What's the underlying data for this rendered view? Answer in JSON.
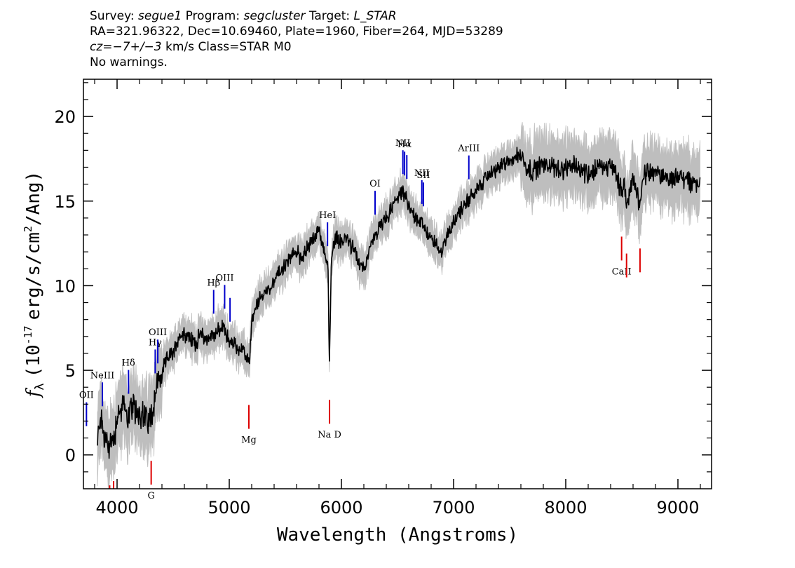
{
  "header": {
    "line1": {
      "survey_label": "Survey:",
      "survey": "segue1",
      "program_label": "Program:",
      "program": "segcluster",
      "target_label": "Target:",
      "target": "L_STAR"
    },
    "line2": "RA=321.96322, Dec=10.69460, Plate=1960, Fiber=264, MJD=53289",
    "line3": {
      "cz_label": "cz",
      "cz_value": "=−7+/−3",
      "cz_unit": "km/s",
      "class_text": "Class=STAR M0"
    },
    "line4": "No warnings."
  },
  "chart_data": {
    "type": "line",
    "title": "",
    "xlabel": "Wavelength (Angstroms)",
    "ylabel": {
      "symbol": "f",
      "subscript": "λ",
      "open": "(10",
      "exponent": "-17",
      "middle": "erg/s/cm",
      "exponent2": "2",
      "close": "/Ang)"
    },
    "xlim": [
      3700,
      9300
    ],
    "ylim": [
      -2,
      22.2
    ],
    "xticks": [
      4000,
      5000,
      6000,
      7000,
      8000,
      9000
    ],
    "yticks": [
      0,
      5,
      10,
      15,
      20
    ],
    "colors": {
      "flux": "#000000",
      "error_band": "#bebebe",
      "emission": "#0000cc",
      "absorption": "#dd0000"
    },
    "series": [
      {
        "role": "flux",
        "x": [
          3825,
          3850,
          3880,
          3900,
          3920,
          3950,
          3980,
          4000,
          4050,
          4100,
          4150,
          4200,
          4250,
          4300,
          4350,
          4400,
          4450,
          4500,
          4550,
          4600,
          4650,
          4700,
          4750,
          4800,
          4850,
          4900,
          4950,
          5000,
          5050,
          5100,
          5150,
          5180,
          5200,
          5250,
          5300,
          5350,
          5400,
          5450,
          5500,
          5550,
          5600,
          5650,
          5700,
          5750,
          5800,
          5850,
          5880,
          5893,
          5910,
          5950,
          6000,
          6050,
          6100,
          6150,
          6200,
          6250,
          6300,
          6350,
          6400,
          6450,
          6500,
          6550,
          6580,
          6600,
          6650,
          6700,
          6750,
          6800,
          6850,
          6880,
          6900,
          6950,
          7000,
          7050,
          7100,
          7150,
          7200,
          7250,
          7300,
          7400,
          7500,
          7600,
          7650,
          7700,
          7800,
          7900,
          8000,
          8100,
          8200,
          8300,
          8400,
          8450,
          8498,
          8520,
          8542,
          8600,
          8662,
          8700,
          8800,
          8900,
          9000,
          9100,
          9200
        ],
        "values": [
          0.5,
          2.5,
          1.2,
          0.8,
          0.5,
          0.8,
          1.2,
          2.4,
          2.8,
          2.4,
          2.7,
          2.5,
          2.2,
          2.1,
          4.0,
          4.8,
          5.8,
          6.0,
          7.0,
          7.2,
          6.9,
          6.6,
          7.2,
          6.8,
          7.1,
          7.3,
          7.6,
          6.7,
          6.5,
          6.2,
          5.8,
          5.5,
          7.8,
          8.9,
          9.5,
          9.8,
          10.3,
          10.8,
          11.2,
          11.7,
          12.0,
          11.6,
          12.3,
          12.8,
          13.2,
          12.0,
          11.0,
          5.5,
          11.5,
          13.0,
          12.5,
          12.8,
          12.2,
          11.5,
          11.0,
          12.0,
          13.0,
          13.5,
          14.0,
          14.5,
          15.3,
          15.4,
          15.2,
          14.6,
          14.2,
          13.8,
          13.3,
          12.8,
          12.3,
          12.0,
          12.3,
          13.0,
          13.8,
          14.3,
          14.8,
          15.2,
          15.6,
          16.0,
          16.5,
          17.0,
          17.4,
          17.8,
          17.0,
          16.8,
          17.2,
          17.0,
          16.8,
          17.1,
          16.6,
          17.0,
          17.1,
          16.7,
          15.5,
          16.2,
          14.5,
          16.5,
          14.8,
          16.6,
          16.7,
          16.3,
          16.5,
          16.2,
          16.0
        ]
      }
    ],
    "spectral_lines": [
      {
        "label": "OII",
        "lambda": 3727,
        "kind": "emission"
      },
      {
        "label": "NeIII",
        "lambda": 3869,
        "kind": "emission"
      },
      {
        "label": "Hδ",
        "lambda": 4102,
        "kind": "emission"
      },
      {
        "label": "Hγ",
        "lambda": 4340,
        "kind": "emission"
      },
      {
        "label": "OIII",
        "lambda": 4363,
        "kind": "emission"
      },
      {
        "label": "Hβ",
        "lambda": 4861,
        "kind": "emission"
      },
      {
        "label": "OIII",
        "lambda": 4959,
        "kind": "emission"
      },
      {
        "label": "",
        "lambda": 5007,
        "kind": "emission"
      },
      {
        "label": "HeI",
        "lambda": 5876,
        "kind": "emission"
      },
      {
        "label": "OI",
        "lambda": 6300,
        "kind": "emission"
      },
      {
        "label": "NII",
        "lambda": 6548,
        "kind": "emission"
      },
      {
        "label": "Hα",
        "lambda": 6563,
        "kind": "emission"
      },
      {
        "label": "",
        "lambda": 6583,
        "kind": "emission"
      },
      {
        "label": "NII",
        "lambda": 6717,
        "kind": "emission"
      },
      {
        "label": "SII",
        "lambda": 6731,
        "kind": "emission"
      },
      {
        "label": "ArIII",
        "lambda": 7136,
        "kind": "emission"
      },
      {
        "label": "G",
        "lambda": 4304,
        "kind": "absorption"
      },
      {
        "label": "Mg",
        "lambda": 5175,
        "kind": "absorption"
      },
      {
        "label": "Na D",
        "lambda": 5894,
        "kind": "absorption"
      },
      {
        "label": "CaII",
        "lambda": 8498,
        "kind": "absorption"
      },
      {
        "label": "",
        "lambda": 8542,
        "kind": "absorption"
      },
      {
        "label": "",
        "lambda": 8662,
        "kind": "absorption"
      },
      {
        "label": "",
        "lambda": 3934,
        "kind": "absorption"
      },
      {
        "label": "",
        "lambda": 3969,
        "kind": "absorption"
      }
    ]
  }
}
